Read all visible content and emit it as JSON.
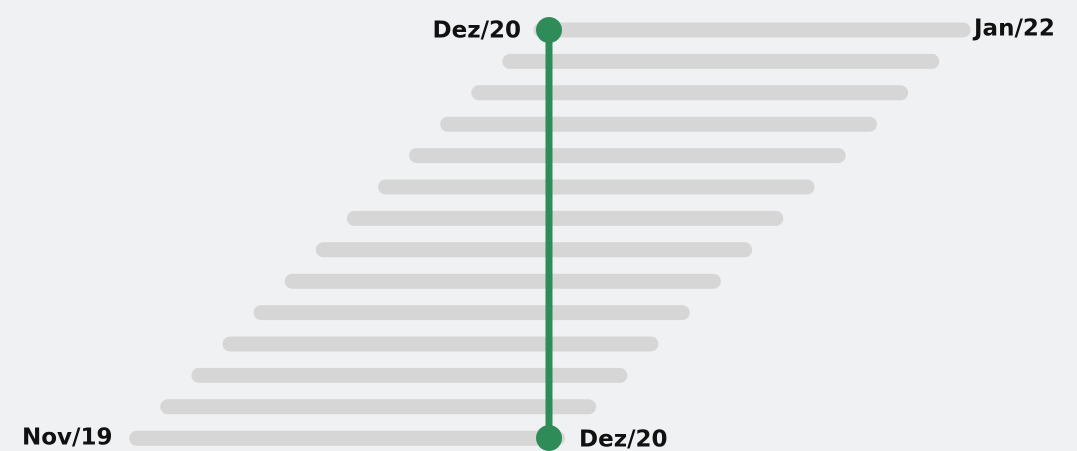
{
  "labels": {
    "top_start": "Dez/20",
    "top_end": "Jan/22",
    "bottom_start": "Nov/19",
    "bottom_end": "Dez/20"
  }
}
